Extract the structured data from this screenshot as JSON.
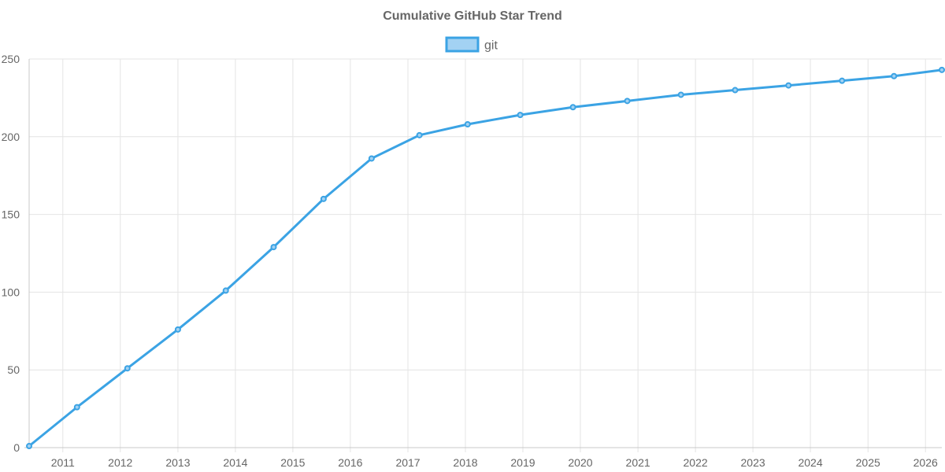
{
  "chart_data": {
    "type": "line",
    "title": "Cumulative GitHub Star Trend",
    "xlabel": "",
    "ylabel": "",
    "x_ticks": [
      "2011",
      "2012",
      "2013",
      "2014",
      "2015",
      "2016",
      "2017",
      "2018",
      "2019",
      "2020",
      "2021",
      "2022",
      "2023",
      "2024",
      "2025",
      "2026"
    ],
    "y_ticks": [
      0,
      50,
      100,
      150,
      200,
      250
    ],
    "xlim": [
      "2010-06-01",
      "2026-04-15"
    ],
    "ylim": [
      0,
      250
    ],
    "grid": true,
    "legend_position": "top",
    "series": [
      {
        "name": "git",
        "color": "#3ba3e4",
        "fill_color": "#a3d2f3",
        "points": [
          {
            "x": "2010-06-01",
            "y": 1
          },
          {
            "x": "2011-04-01",
            "y": 26
          },
          {
            "x": "2012-02-15",
            "y": 51
          },
          {
            "x": "2013-01-01",
            "y": 76
          },
          {
            "x": "2013-11-01",
            "y": 101
          },
          {
            "x": "2014-09-01",
            "y": 129
          },
          {
            "x": "2015-07-15",
            "y": 160
          },
          {
            "x": "2016-05-15",
            "y": 186
          },
          {
            "x": "2017-03-15",
            "y": 201
          },
          {
            "x": "2018-01-15",
            "y": 208
          },
          {
            "x": "2018-12-15",
            "y": 214
          },
          {
            "x": "2019-11-15",
            "y": 219
          },
          {
            "x": "2020-10-25",
            "y": 223
          },
          {
            "x": "2021-10-01",
            "y": 227
          },
          {
            "x": "2022-09-10",
            "y": 230
          },
          {
            "x": "2023-08-15",
            "y": 233
          },
          {
            "x": "2024-07-20",
            "y": 236
          },
          {
            "x": "2025-06-15",
            "y": 239
          },
          {
            "x": "2026-04-15",
            "y": 243
          }
        ]
      }
    ]
  }
}
